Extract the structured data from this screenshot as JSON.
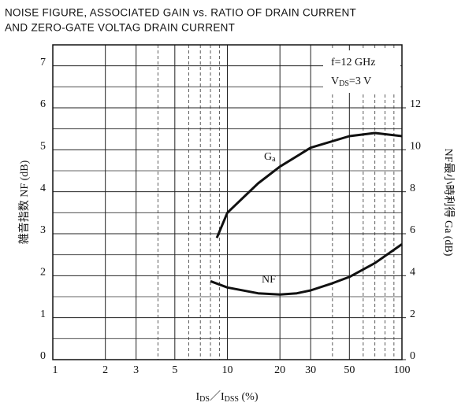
{
  "chart_data": {
    "type": "line",
    "title": [
      "NOISE FIGURE, ASSOCIATED GAIN vs. RATIO OF DRAIN CURRENT",
      "AND ZERO-GATE VOLTAG DRAIN CURRENT"
    ],
    "y_label": "雑音指数 NF (dB)",
    "y2_label": "NF最小時利得 Ga (dB)",
    "x_label": [
      "I",
      "DS",
      "／I",
      "DSS",
      " (%)"
    ],
    "annotations": {
      "freq": "f=12 GHz",
      "vds": [
        "V",
        "DS",
        "=3 V"
      ]
    },
    "xlog": true,
    "xlim": [
      1,
      100
    ],
    "xticks": [
      1,
      2,
      3,
      5,
      10,
      20,
      30,
      50,
      100
    ],
    "xminor": [
      4,
      6,
      7,
      8,
      9,
      40,
      60,
      70,
      80,
      90
    ],
    "ylim": [
      0,
      7.5
    ],
    "yticks": [
      0,
      1,
      2,
      3,
      4,
      5,
      6,
      7
    ],
    "yminor": [
      0.5,
      1.5,
      2.5,
      3.5,
      4.5,
      5.5,
      6.5
    ],
    "y2lim": [
      0,
      15
    ],
    "y2ticks": [
      0,
      2,
      4,
      6,
      8,
      10,
      12
    ],
    "grid": true,
    "series": [
      {
        "name": [
          "G",
          "a"
        ],
        "color": "#111111",
        "axis": "y2",
        "x": [
          8.7,
          10,
          15,
          20,
          30,
          50,
          70,
          100
        ],
        "values": [
          5.8,
          7.0,
          8.4,
          9.2,
          10.1,
          10.65,
          10.8,
          10.65
        ]
      },
      {
        "name": [
          "NF"
        ],
        "color": "#111111",
        "axis": "y",
        "x": [
          8,
          10,
          15,
          20,
          25,
          30,
          40,
          50,
          70,
          100
        ],
        "values": [
          1.87,
          1.72,
          1.58,
          1.55,
          1.58,
          1.65,
          1.82,
          1.97,
          2.3,
          2.75
        ]
      }
    ]
  }
}
